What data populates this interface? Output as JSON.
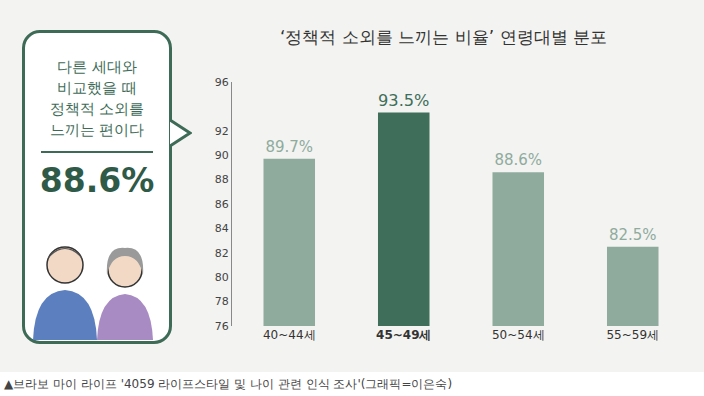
{
  "chart_data": {
    "type": "bar",
    "title": "‘정책적 소외를 느끼는 비율’ 연령대별 분포",
    "categories": [
      "40~44세",
      "45~49세",
      "50~54세",
      "55~59세"
    ],
    "values": [
      89.7,
      93.5,
      88.6,
      82.5
    ],
    "value_labels": [
      "89.7%",
      "93.5%",
      "88.6%",
      "82.5%"
    ],
    "colors": [
      "#8fab9e",
      "#3f6e5a",
      "#8fab9e",
      "#8fab9e"
    ],
    "ylim": [
      76,
      96
    ],
    "yticks": [
      76,
      78,
      80,
      82,
      84,
      86,
      88,
      90,
      92,
      96
    ],
    "grid": false,
    "data_labels": true,
    "source": "▲브라보 마이 라이프 '4059 라이프스타일 및 나이 관련 인식 조사'(그래픽=이은숙)"
  },
  "callout": {
    "text": [
      "다른 세대와",
      "비교했을 때",
      "정책적 소외를",
      "느끼는 편이다"
    ],
    "label": "88.6%"
  }
}
